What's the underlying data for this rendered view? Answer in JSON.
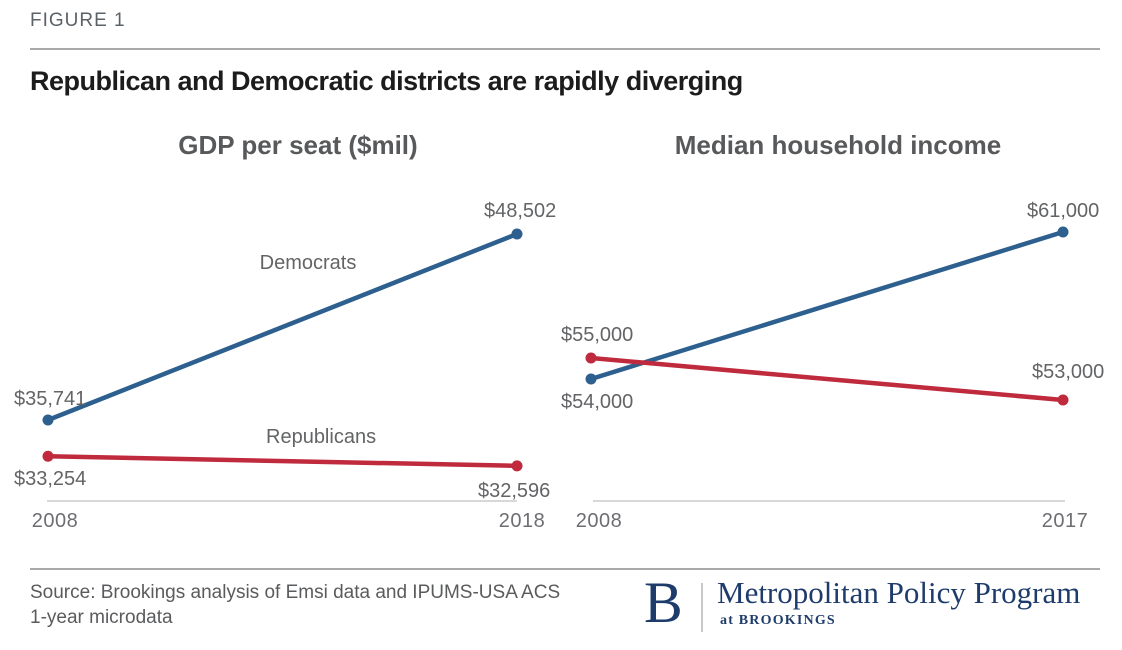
{
  "figure_label": "FIGURE 1",
  "page_title": "Republican and Democratic districts are rapidly diverging",
  "chart_data": [
    {
      "type": "line",
      "title": "GDP per seat ($mil)",
      "x": [
        2008,
        2018
      ],
      "x_tick_labels": [
        "2008",
        "2018"
      ],
      "xlabel": "",
      "ylabel": "",
      "grid": false,
      "legend_position": "inline-series-labels",
      "series": [
        {
          "name": "Democrats",
          "color": "#2e608f",
          "values": [
            35741,
            48502
          ],
          "point_labels": [
            "$35,741",
            "$48,502"
          ]
        },
        {
          "name": "Republicans",
          "color": "#bf2a3c",
          "values": [
            33254,
            32596
          ],
          "point_labels": [
            "$33,254",
            "$32,596"
          ]
        }
      ]
    },
    {
      "type": "line",
      "title": "Median household income",
      "x": [
        2008,
        2017
      ],
      "x_tick_labels": [
        "2008",
        "2017"
      ],
      "xlabel": "",
      "ylabel": "",
      "grid": false,
      "legend_position": "none",
      "series": [
        {
          "name": "Democrats",
          "color": "#2e608f",
          "values": [
            54000,
            61000
          ],
          "point_labels": [
            "$54,000",
            "$61,000"
          ]
        },
        {
          "name": "Republicans",
          "color": "#bf2a3c",
          "values": [
            55000,
            53000
          ],
          "point_labels": [
            "$55,000",
            "$53,000"
          ]
        }
      ]
    }
  ],
  "footer": {
    "source_line1": "Source: Brookings analysis of Emsi data and IPUMS-USA ACS",
    "source_line2": "1-year microdata",
    "logo": {
      "initial": "B",
      "program": "Metropolitan Policy Program",
      "tagline": "at BROOKINGS"
    }
  },
  "colors": {
    "democrat_blue": "#2e608f",
    "republican_red": "#bf2a3c",
    "brookings_navy": "#1e3c6b",
    "title_gray": "#58595b"
  }
}
